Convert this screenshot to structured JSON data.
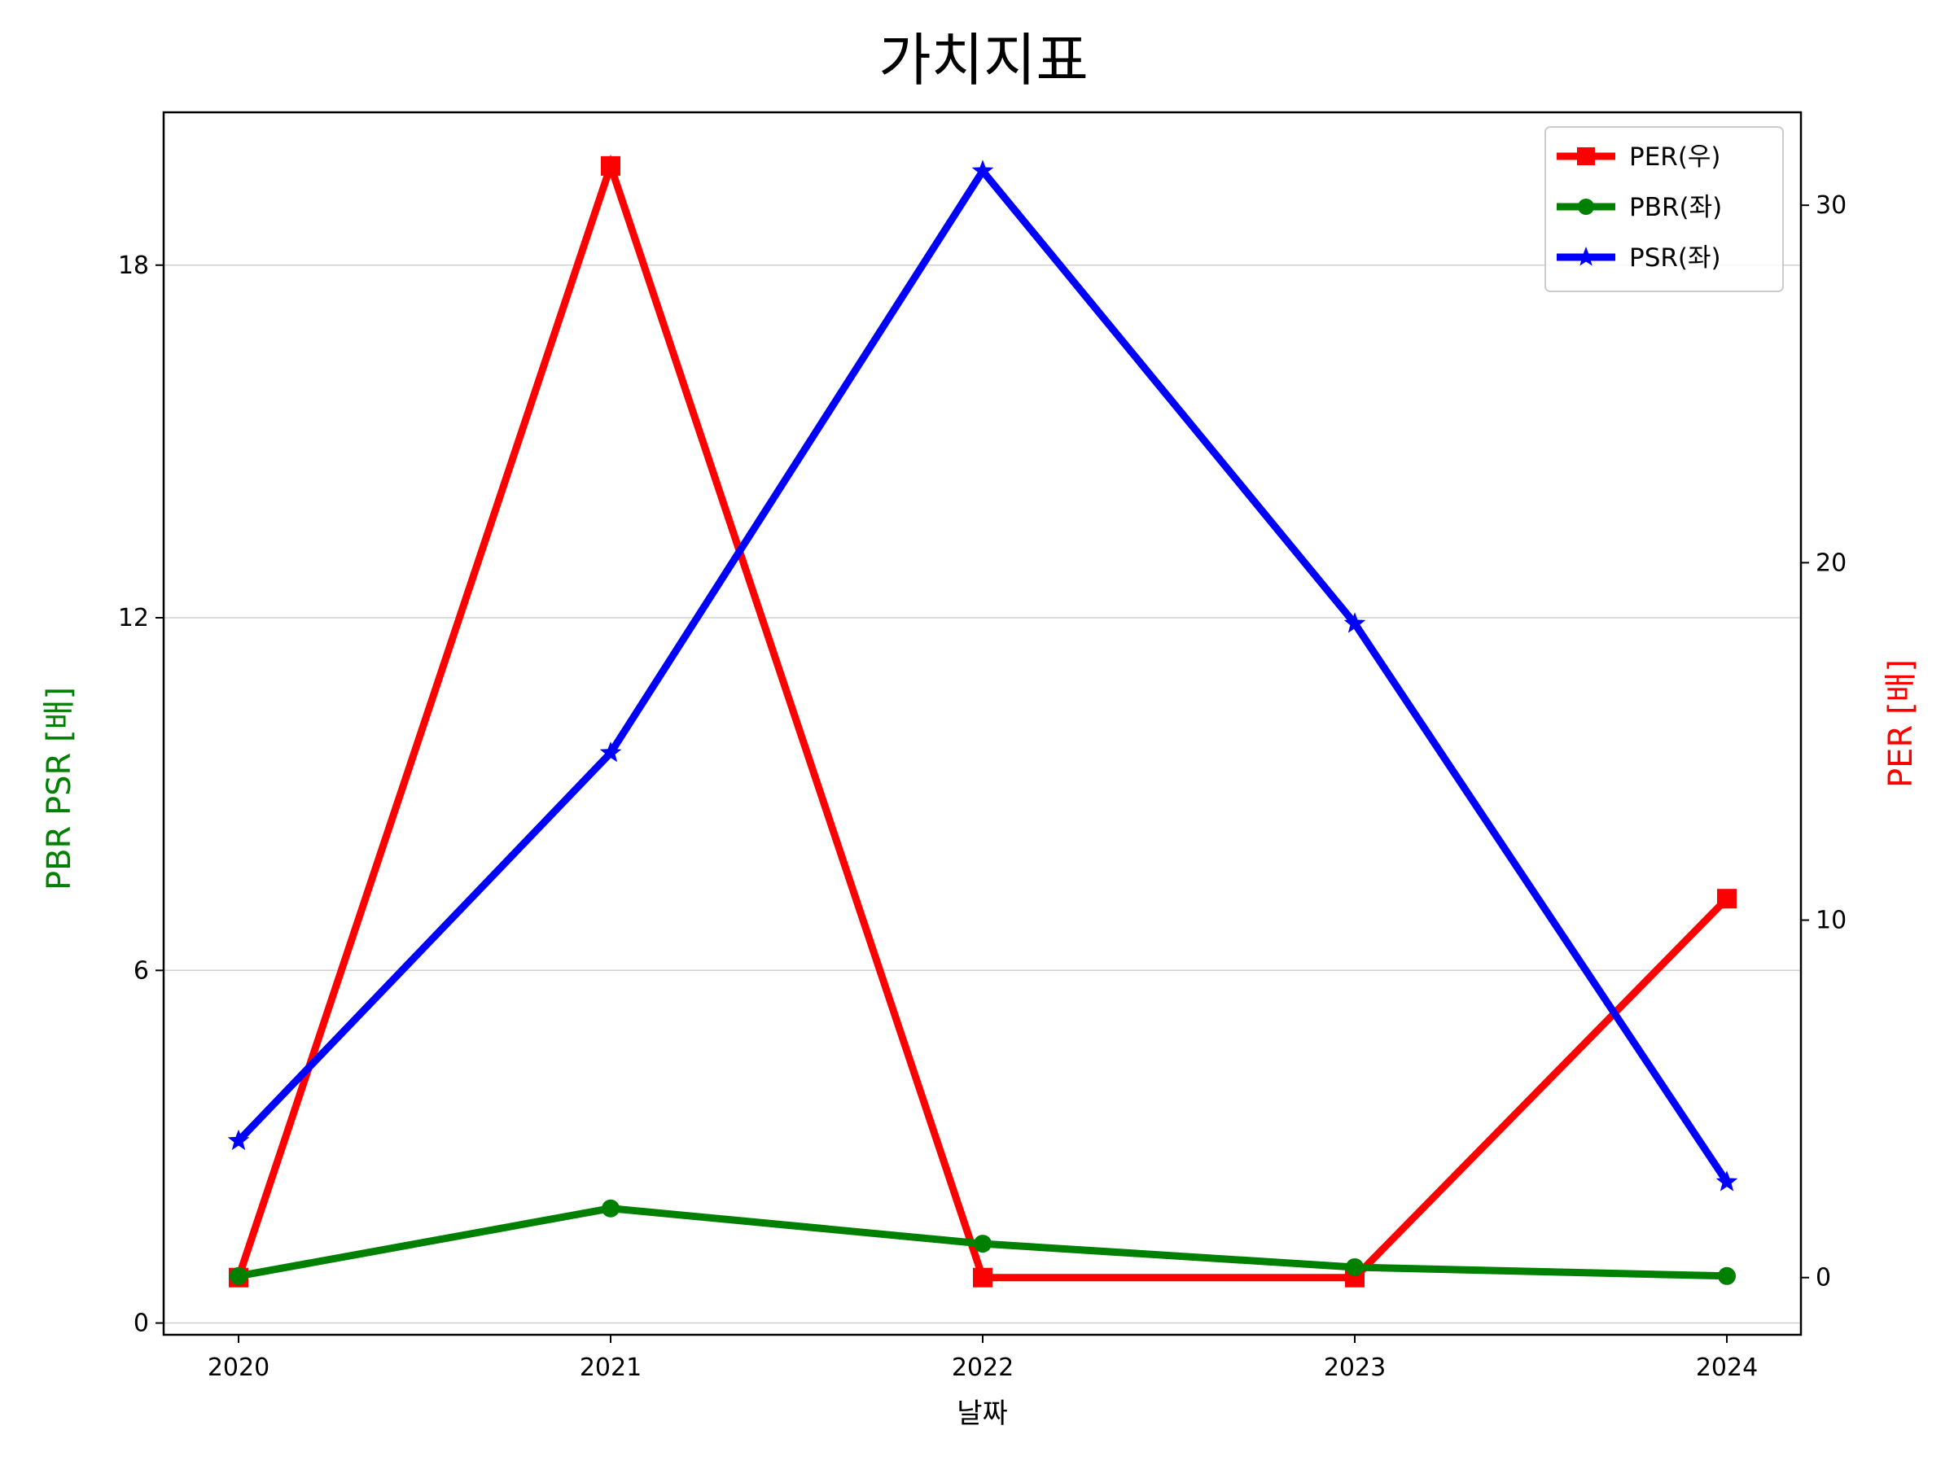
{
  "chart_data": {
    "type": "line",
    "title": "가치지표",
    "xlabel": "날짜",
    "ylabel_left": "PBR PSR [배]",
    "ylabel_right": "PER [배]",
    "categories": [
      "2020",
      "2021",
      "2022",
      "2023",
      "2024"
    ],
    "left_axis": {
      "ylim": [
        -0.2,
        20.6
      ],
      "ticks": [
        0,
        6,
        12,
        18
      ],
      "tick_labels": [
        "0",
        "6",
        "12",
        "18"
      ]
    },
    "right_axis": {
      "ylim": [
        -1.6,
        32.6
      ],
      "ticks": [
        0,
        10,
        20,
        30
      ],
      "tick_labels": [
        "0",
        "10",
        "20",
        "30"
      ]
    },
    "grid": "horizontal (left axis)",
    "legend_position": "upper right",
    "series": [
      {
        "name": "PER(우)",
        "axis": "right",
        "color": "#ff0000",
        "marker": "square",
        "values": [
          0.0,
          31.1,
          0.0,
          0.0,
          10.6
        ]
      },
      {
        "name": "PBR(좌)",
        "axis": "left",
        "color": "#008000",
        "marker": "circle",
        "values": [
          0.8,
          1.95,
          1.35,
          0.95,
          0.8
        ]
      },
      {
        "name": "PSR(좌)",
        "axis": "left",
        "color": "#0000ff",
        "marker": "star",
        "values": [
          3.1,
          9.7,
          19.6,
          11.9,
          2.4
        ]
      }
    ],
    "colors": {
      "left_label": "#008000",
      "right_label": "#ff0000"
    }
  }
}
